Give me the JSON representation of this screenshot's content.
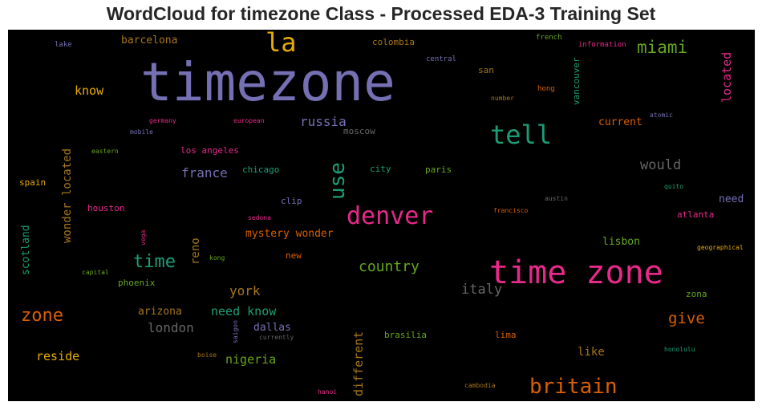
{
  "title": "WordCloud for timezone Class - Processed EDA-3 Training Set",
  "chart_data": {
    "type": "wordcloud",
    "background": "#000000",
    "words": [
      {
        "text": "timezone",
        "color": "#7570b3"
      },
      {
        "text": "time zone",
        "color": "#e7298a"
      },
      {
        "text": "denver",
        "color": "#e7298a"
      },
      {
        "text": "tell",
        "color": "#1b9e77"
      },
      {
        "text": "britain",
        "color": "#d95f02"
      },
      {
        "text": "la",
        "color": "#e6ab02"
      },
      {
        "text": "use",
        "color": "#1b9e77"
      },
      {
        "text": "time",
        "color": "#1b9e77"
      },
      {
        "text": "zone",
        "color": "#d95f02"
      },
      {
        "text": "miami",
        "color": "#66a61e"
      },
      {
        "text": "country",
        "color": "#66a61e"
      },
      {
        "text": "give",
        "color": "#d95f02"
      },
      {
        "text": "italy",
        "color": "#666666"
      },
      {
        "text": "would",
        "color": "#666666"
      },
      {
        "text": "london",
        "color": "#666666"
      },
      {
        "text": "russia",
        "color": "#7570b3"
      },
      {
        "text": "france",
        "color": "#7570b3"
      },
      {
        "text": "york",
        "color": "#a6761d"
      },
      {
        "text": "need know",
        "color": "#1b9e77"
      },
      {
        "text": "nigeria",
        "color": "#66a61e"
      },
      {
        "text": "located",
        "color": "#e7298a"
      },
      {
        "text": "different",
        "color": "#a6761d"
      },
      {
        "text": "know",
        "color": "#e6ab02"
      },
      {
        "text": "reside",
        "color": "#e6ab02"
      },
      {
        "text": "wonder located",
        "color": "#a6761d"
      },
      {
        "text": "reno",
        "color": "#a6761d"
      },
      {
        "text": "barcelona",
        "color": "#a6761d"
      },
      {
        "text": "current",
        "color": "#d95f02"
      },
      {
        "text": "like",
        "color": "#a6761d"
      },
      {
        "text": "mystery wonder",
        "color": "#d95f02"
      },
      {
        "text": "arizona",
        "color": "#a6761d"
      },
      {
        "text": "dallas",
        "color": "#7570b3"
      },
      {
        "text": "scotland",
        "color": "#1b9e77"
      },
      {
        "text": "lisbon",
        "color": "#66a61e"
      },
      {
        "text": "need",
        "color": "#7570b3"
      },
      {
        "text": "vancouver",
        "color": "#1b9e77"
      },
      {
        "text": "houston",
        "color": "#e7298a"
      },
      {
        "text": "los angeles",
        "color": "#e7298a"
      },
      {
        "text": "chicago",
        "color": "#1b9e77"
      },
      {
        "text": "colombia",
        "color": "#a6761d"
      },
      {
        "text": "phoenix",
        "color": "#66a61e"
      },
      {
        "text": "atlanta",
        "color": "#e7298a"
      },
      {
        "text": "moscow",
        "color": "#666666"
      },
      {
        "text": "new",
        "color": "#d95f02"
      },
      {
        "text": "zona",
        "color": "#66a61e"
      },
      {
        "text": "paris",
        "color": "#66a61e"
      },
      {
        "text": "brasilia",
        "color": "#66a61e"
      },
      {
        "text": "clip",
        "color": "#7570b3"
      },
      {
        "text": "lima",
        "color": "#d95f02"
      },
      {
        "text": "city",
        "color": "#1b9e77"
      },
      {
        "text": "spain",
        "color": "#e6ab02"
      },
      {
        "text": "san",
        "color": "#a6761d"
      },
      {
        "text": "central",
        "color": "#7570b3"
      },
      {
        "text": "lake",
        "color": "#7570b3"
      },
      {
        "text": "french",
        "color": "#66a61e"
      },
      {
        "text": "information",
        "color": "#e7298a"
      },
      {
        "text": "hong",
        "color": "#d95f02"
      },
      {
        "text": "number",
        "color": "#a6761d"
      },
      {
        "text": "atomic",
        "color": "#7570b3"
      },
      {
        "text": "germany",
        "color": "#e7298a"
      },
      {
        "text": "european",
        "color": "#e7298a"
      },
      {
        "text": "mobile",
        "color": "#7570b3"
      },
      {
        "text": "eastern",
        "color": "#66a61e"
      },
      {
        "text": "austin",
        "color": "#666666"
      },
      {
        "text": "quito",
        "color": "#1b9e77"
      },
      {
        "text": "francisco",
        "color": "#d95f02"
      },
      {
        "text": "sedona",
        "color": "#e7298a"
      },
      {
        "text": "vega",
        "color": "#e7298a"
      },
      {
        "text": "kong",
        "color": "#66a61e"
      },
      {
        "text": "capital",
        "color": "#66a61e"
      },
      {
        "text": "geographical",
        "color": "#e6ab02"
      },
      {
        "text": "saigon",
        "color": "#7570b3"
      },
      {
        "text": "currently",
        "color": "#666666"
      },
      {
        "text": "boise",
        "color": "#a6761d"
      },
      {
        "text": "honolulu",
        "color": "#1b9e77"
      },
      {
        "text": "hanoi",
        "color": "#e7298a"
      },
      {
        "text": "cambodia",
        "color": "#a6761d"
      }
    ]
  }
}
